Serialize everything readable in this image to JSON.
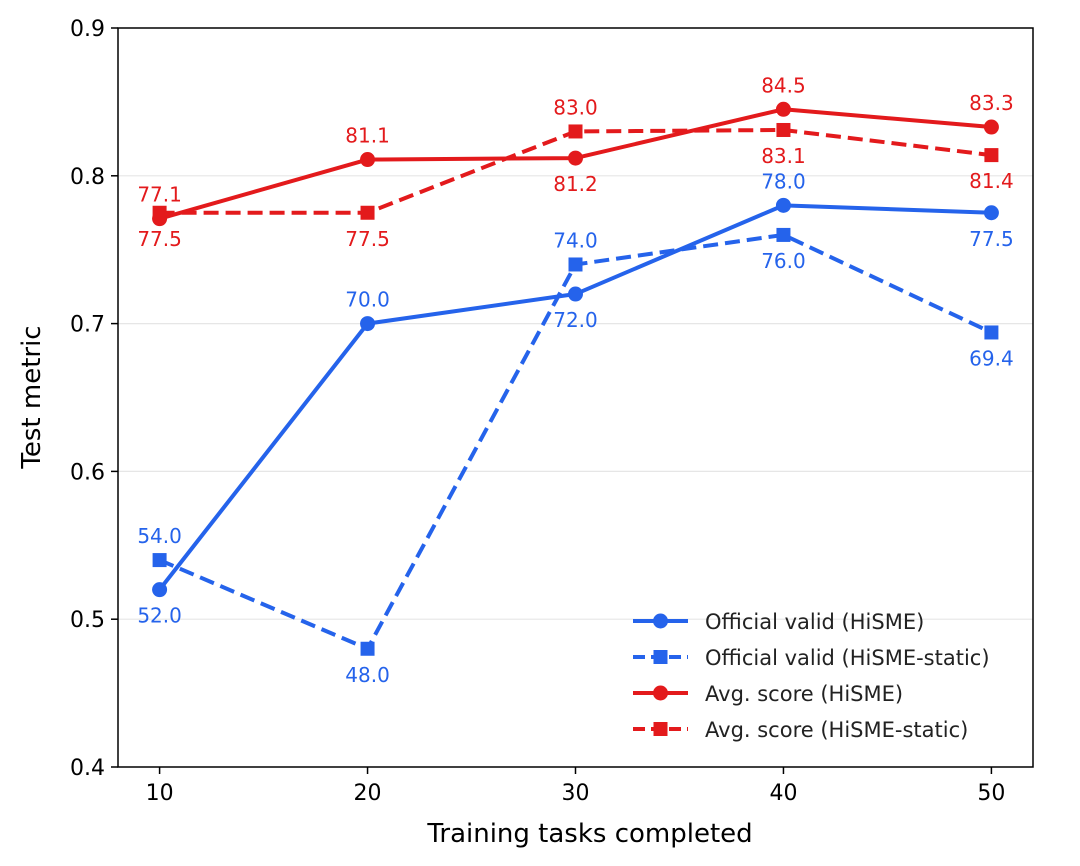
{
  "chart_data": {
    "type": "line",
    "title": "",
    "xlabel": "Training tasks completed",
    "ylabel": "Test metric",
    "x": [
      10,
      20,
      30,
      40,
      50
    ],
    "xticks": [
      "10",
      "20",
      "30",
      "40",
      "50"
    ],
    "xlim": [
      8,
      52
    ],
    "ylim": [
      0.4,
      0.9
    ],
    "yticks": [
      "0.4",
      "0.5",
      "0.6",
      "0.7",
      "0.8",
      "0.9"
    ],
    "grid": "horizontal",
    "legend_position": "lower-right",
    "series": [
      {
        "name": "Official valid (HiSME)",
        "color": "#2563EB",
        "line_style": "solid",
        "marker": "circle",
        "values": [
          0.52,
          0.7,
          0.72,
          0.78,
          0.775
        ],
        "labels": [
          "52.0",
          "70.0",
          "72.0",
          "78.0",
          "77.5"
        ],
        "label_position": [
          "below",
          "above",
          "below",
          "above",
          "below"
        ]
      },
      {
        "name": "Official valid (HiSME-static)",
        "color": "#2563EB",
        "line_style": "dashed",
        "marker": "square",
        "values": [
          0.54,
          0.48,
          0.74,
          0.76,
          0.694
        ],
        "labels": [
          "54.0",
          "48.0",
          "74.0",
          "76.0",
          "69.4"
        ],
        "label_position": [
          "above",
          "below",
          "above",
          "below",
          "below"
        ]
      },
      {
        "name": "Avg. score (HiSME)",
        "color": "#E31A1C",
        "line_style": "solid",
        "marker": "circle",
        "values": [
          0.771,
          0.811,
          0.812,
          0.845,
          0.833
        ],
        "labels": [
          "77.1",
          "81.1",
          "81.2",
          "84.5",
          "83.3"
        ],
        "label_position": [
          "above",
          "above",
          "below",
          "above",
          "above"
        ]
      },
      {
        "name": "Avg. score (HiSME-static)",
        "color": "#E31A1C",
        "line_style": "dashed",
        "marker": "square",
        "values": [
          0.775,
          0.775,
          0.83,
          0.831,
          0.814
        ],
        "labels": [
          "77.5",
          "77.5",
          "83.0",
          "83.1",
          "81.4"
        ],
        "label_position": [
          "below",
          "below",
          "above",
          "below",
          "below"
        ]
      }
    ]
  }
}
